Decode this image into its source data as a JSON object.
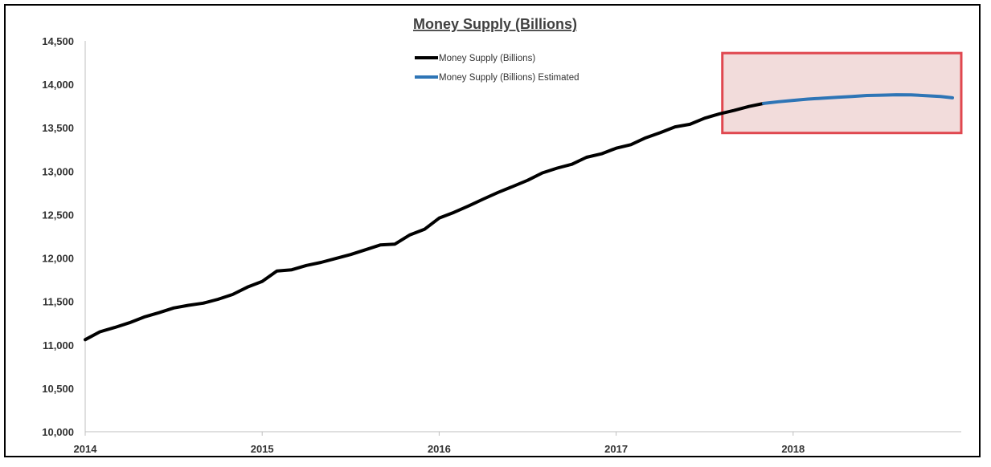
{
  "chart_data": {
    "type": "line",
    "title": "Money Supply (Billions)",
    "xlabel": "",
    "ylabel": "",
    "ylim": [
      10000,
      14500
    ],
    "yticks": [
      "10,000",
      "10,500",
      "11,000",
      "11,500",
      "12,000",
      "12,500",
      "13,000",
      "13,500",
      "14,000",
      "14,500"
    ],
    "ytick_values": [
      10000,
      10500,
      11000,
      11500,
      12000,
      12500,
      13000,
      13500,
      14000,
      14500
    ],
    "xlim": [
      2014.0,
      2018.95
    ],
    "xticks": [
      "2014",
      "2015",
      "2016",
      "2017",
      "2018"
    ],
    "xtick_values": [
      2014.0,
      2015.0,
      2016.0,
      2017.0,
      2018.0
    ],
    "grid": false,
    "legend": "top-center",
    "series": [
      {
        "name": "Money Supply (Billions)",
        "color": "#000000",
        "x": [
          2014.0,
          2014.083,
          2014.167,
          2014.25,
          2014.333,
          2014.417,
          2014.5,
          2014.583,
          2014.667,
          2014.75,
          2014.833,
          2014.917,
          2015.0,
          2015.083,
          2015.167,
          2015.25,
          2015.333,
          2015.417,
          2015.5,
          2015.583,
          2015.667,
          2015.75,
          2015.833,
          2015.917,
          2016.0,
          2016.083,
          2016.167,
          2016.25,
          2016.333,
          2016.417,
          2016.5,
          2016.583,
          2016.667,
          2016.75,
          2016.833,
          2016.917,
          2017.0,
          2017.083,
          2017.167,
          2017.25,
          2017.333,
          2017.417,
          2017.5,
          2017.583,
          2017.667,
          2017.75,
          2017.833
        ],
        "values": [
          11060,
          11150,
          11200,
          11255,
          11320,
          11370,
          11425,
          11455,
          11480,
          11525,
          11580,
          11665,
          11730,
          11850,
          11865,
          11915,
          11950,
          11995,
          12040,
          12095,
          12150,
          12160,
          12265,
          12330,
          12460,
          12525,
          12600,
          12680,
          12755,
          12825,
          12895,
          12980,
          13035,
          13080,
          13160,
          13200,
          13265,
          13305,
          13385,
          13445,
          13510,
          13540,
          13610,
          13660,
          13700,
          13745,
          13780
        ]
      },
      {
        "name": "Money Supply (Billions) Estimated",
        "color": "#2e75b6",
        "x": [
          2017.833,
          2017.917,
          2018.0,
          2018.083,
          2018.167,
          2018.25,
          2018.333,
          2018.417,
          2018.5,
          2018.583,
          2018.667,
          2018.75,
          2018.833,
          2018.9
        ],
        "values": [
          13780,
          13800,
          13815,
          13830,
          13840,
          13850,
          13860,
          13872,
          13875,
          13880,
          13878,
          13870,
          13860,
          13845
        ]
      }
    ],
    "highlight": {
      "x_range": [
        2017.6,
        2018.95
      ],
      "y_range": [
        13440,
        14360
      ],
      "fill": "#f2dcdb",
      "stroke": "#e0474f"
    }
  }
}
